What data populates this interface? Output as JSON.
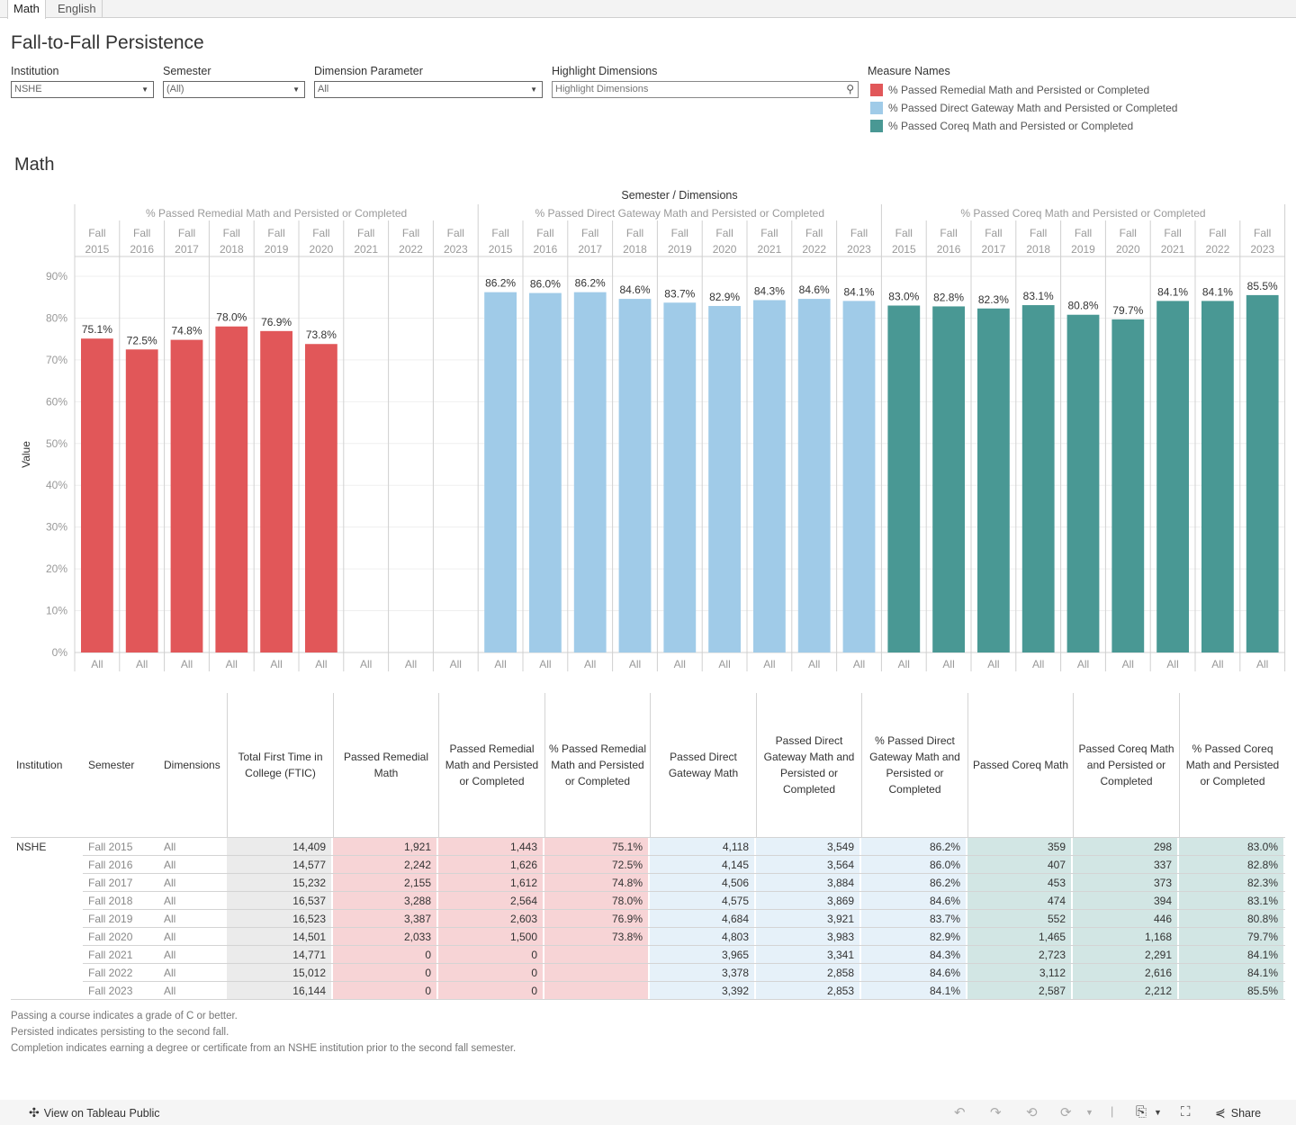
{
  "tabs": [
    {
      "label": "Math",
      "active": true
    },
    {
      "label": "English",
      "active": false
    }
  ],
  "title": "Fall-to-Fall Persistence",
  "filters": {
    "institution": {
      "label": "Institution",
      "value": "NSHE"
    },
    "semester": {
      "label": "Semester",
      "value": "(All)"
    },
    "dimension_parameter": {
      "label": "Dimension Parameter",
      "value": "All"
    },
    "highlight": {
      "label": "Highlight Dimensions",
      "placeholder": "Highlight Dimensions"
    }
  },
  "legend": {
    "title": "Measure Names",
    "items": [
      {
        "label": "% Passed Remedial Math and Persisted or Completed",
        "color": "#e15759"
      },
      {
        "label": "% Passed Direct Gateway Math and Persisted or Completed",
        "color": "#a0cbe8"
      },
      {
        "label": "% Passed Coreq Math and Persisted or Completed",
        "color": "#499894"
      }
    ]
  },
  "section_title": "Math",
  "chart_data": {
    "type": "bar",
    "title": "Semester / Dimensions",
    "ylabel": "Value",
    "xlabel": "",
    "ylim": [
      0,
      0.9
    ],
    "yticks": [
      "0%",
      "10%",
      "20%",
      "30%",
      "40%",
      "50%",
      "60%",
      "70%",
      "80%",
      "90%"
    ],
    "grid": true,
    "legend_position": "top-right",
    "categories": [
      "Fall 2015",
      "Fall 2016",
      "Fall 2017",
      "Fall 2018",
      "Fall 2019",
      "Fall 2020",
      "Fall 2021",
      "Fall 2022",
      "Fall 2023"
    ],
    "dimension_label": "All",
    "series": [
      {
        "name": "% Passed Remedial Math and Persisted or Completed",
        "color": "#e15759",
        "values": [
          75.1,
          72.5,
          74.8,
          78.0,
          76.9,
          73.8,
          null,
          null,
          null
        ]
      },
      {
        "name": "% Passed Direct Gateway Math and Persisted or Completed",
        "color": "#a0cbe8",
        "values": [
          86.2,
          86.0,
          86.2,
          84.6,
          83.7,
          82.9,
          84.3,
          84.6,
          84.1
        ]
      },
      {
        "name": "% Passed Coreq Math and Persisted or Completed",
        "color": "#499894",
        "values": [
          83.0,
          82.8,
          82.3,
          83.1,
          80.8,
          79.7,
          84.1,
          84.1,
          85.5
        ]
      }
    ]
  },
  "table": {
    "headers": [
      "Institution",
      "Semester",
      "Dimensions",
      "Total First Time in College (FTIC)",
      "Passed Remedial Math",
      "Passed Remedial Math and Persisted or Completed",
      "% Passed Remedial Math and Persisted or Completed",
      "Passed Direct Gateway Math",
      "Passed Direct Gateway Math and Persisted or Completed",
      "% Passed Direct Gateway Math and Persisted or Completed",
      "Passed Coreq Math",
      "Passed Coreq Math and Persisted or Completed",
      "% Passed Coreq Math and Persisted or Completed"
    ],
    "institution": "NSHE",
    "rows": [
      [
        "Fall 2015",
        "All",
        "14,409",
        "1,921",
        "1,443",
        "75.1%",
        "4,118",
        "3,549",
        "86.2%",
        "359",
        "298",
        "83.0%"
      ],
      [
        "Fall 2016",
        "All",
        "14,577",
        "2,242",
        "1,626",
        "72.5%",
        "4,145",
        "3,564",
        "86.0%",
        "407",
        "337",
        "82.8%"
      ],
      [
        "Fall 2017",
        "All",
        "15,232",
        "2,155",
        "1,612",
        "74.8%",
        "4,506",
        "3,884",
        "86.2%",
        "453",
        "373",
        "82.3%"
      ],
      [
        "Fall 2018",
        "All",
        "16,537",
        "3,288",
        "2,564",
        "78.0%",
        "4,575",
        "3,869",
        "84.6%",
        "474",
        "394",
        "83.1%"
      ],
      [
        "Fall 2019",
        "All",
        "16,523",
        "3,387",
        "2,603",
        "76.9%",
        "4,684",
        "3,921",
        "83.7%",
        "552",
        "446",
        "80.8%"
      ],
      [
        "Fall 2020",
        "All",
        "14,501",
        "2,033",
        "1,500",
        "73.8%",
        "4,803",
        "3,983",
        "82.9%",
        "1,465",
        "1,168",
        "79.7%"
      ],
      [
        "Fall 2021",
        "All",
        "14,771",
        "0",
        "0",
        "",
        "3,965",
        "3,341",
        "84.3%",
        "2,723",
        "2,291",
        "84.1%"
      ],
      [
        "Fall 2022",
        "All",
        "15,012",
        "0",
        "0",
        "",
        "3,378",
        "2,858",
        "84.6%",
        "3,112",
        "2,616",
        "84.1%"
      ],
      [
        "Fall 2023",
        "All",
        "16,144",
        "0",
        "0",
        "",
        "3,392",
        "2,853",
        "84.1%",
        "2,587",
        "2,212",
        "85.5%"
      ]
    ],
    "group_colors": {
      "total": "#ebebeb",
      "remedial": "#f7d4d6",
      "gateway": "#e6f1f9",
      "coreq": "#d2e6e4"
    }
  },
  "notes": [
    "Passing a course indicates a grade of C or better.",
    "Persisted indicates persisting to the second fall.",
    "Completion indicates earning a degree or certificate from an NSHE institution prior to the second fall semester."
  ],
  "toolbar": {
    "view_link": "View on Tableau Public",
    "share": "Share",
    "icons": [
      "undo-icon",
      "redo-icon",
      "revert-icon",
      "refresh-icon",
      "download-icon",
      "fullscreen-icon",
      "share-icon"
    ]
  }
}
